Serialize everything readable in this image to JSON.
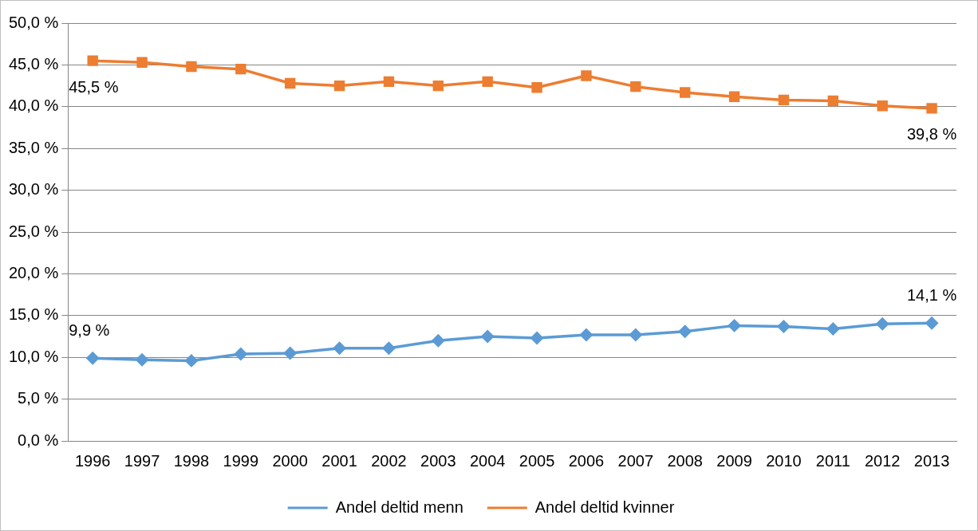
{
  "chart_data": {
    "type": "line",
    "categories": [
      "1996",
      "1997",
      "1998",
      "1999",
      "2000",
      "2001",
      "2002",
      "2003",
      "2004",
      "2005",
      "2006",
      "2007",
      "2008",
      "2009",
      "2010",
      "2011",
      "2012",
      "2013"
    ],
    "series": [
      {
        "name": "Andel deltid menn",
        "color": "#5b9bd5",
        "marker": "diamond",
        "values": [
          9.9,
          9.7,
          9.6,
          10.4,
          10.5,
          11.1,
          11.1,
          12.0,
          12.5,
          12.3,
          12.7,
          12.7,
          13.1,
          13.8,
          13.7,
          13.4,
          14.0,
          14.1
        ],
        "value_labels": [
          "9,9 %",
          null,
          null,
          null,
          null,
          null,
          null,
          null,
          null,
          null,
          null,
          null,
          null,
          null,
          null,
          null,
          null,
          "14,1 %"
        ]
      },
      {
        "name": "Andel deltid kvinner",
        "color": "#ed7d31",
        "marker": "square",
        "values": [
          45.5,
          45.3,
          44.8,
          44.5,
          42.8,
          42.5,
          43.0,
          42.5,
          43.0,
          42.3,
          43.7,
          42.4,
          41.7,
          41.2,
          40.8,
          40.7,
          40.1,
          39.8
        ],
        "value_labels": [
          "45,5 %",
          null,
          null,
          null,
          null,
          null,
          null,
          null,
          null,
          null,
          null,
          null,
          null,
          null,
          null,
          null,
          null,
          "39,8 %"
        ]
      }
    ],
    "ylim": [
      0,
      50
    ],
    "yticks": [
      {
        "value": 0,
        "label": "0,0 %"
      },
      {
        "value": 5,
        "label": "5,0 %"
      },
      {
        "value": 10,
        "label": "10,0 %"
      },
      {
        "value": 15,
        "label": "15,0 %"
      },
      {
        "value": 20,
        "label": "20,0 %"
      },
      {
        "value": 25,
        "label": "25,0 %"
      },
      {
        "value": 30,
        "label": "30,0 %"
      },
      {
        "value": 35,
        "label": "35,0 %"
      },
      {
        "value": 40,
        "label": "40,0 %"
      },
      {
        "value": 45,
        "label": "45,0 %"
      },
      {
        "value": 50,
        "label": "50,0 %"
      }
    ],
    "grid": "y",
    "legend": "bottom",
    "line_style": "solid"
  }
}
